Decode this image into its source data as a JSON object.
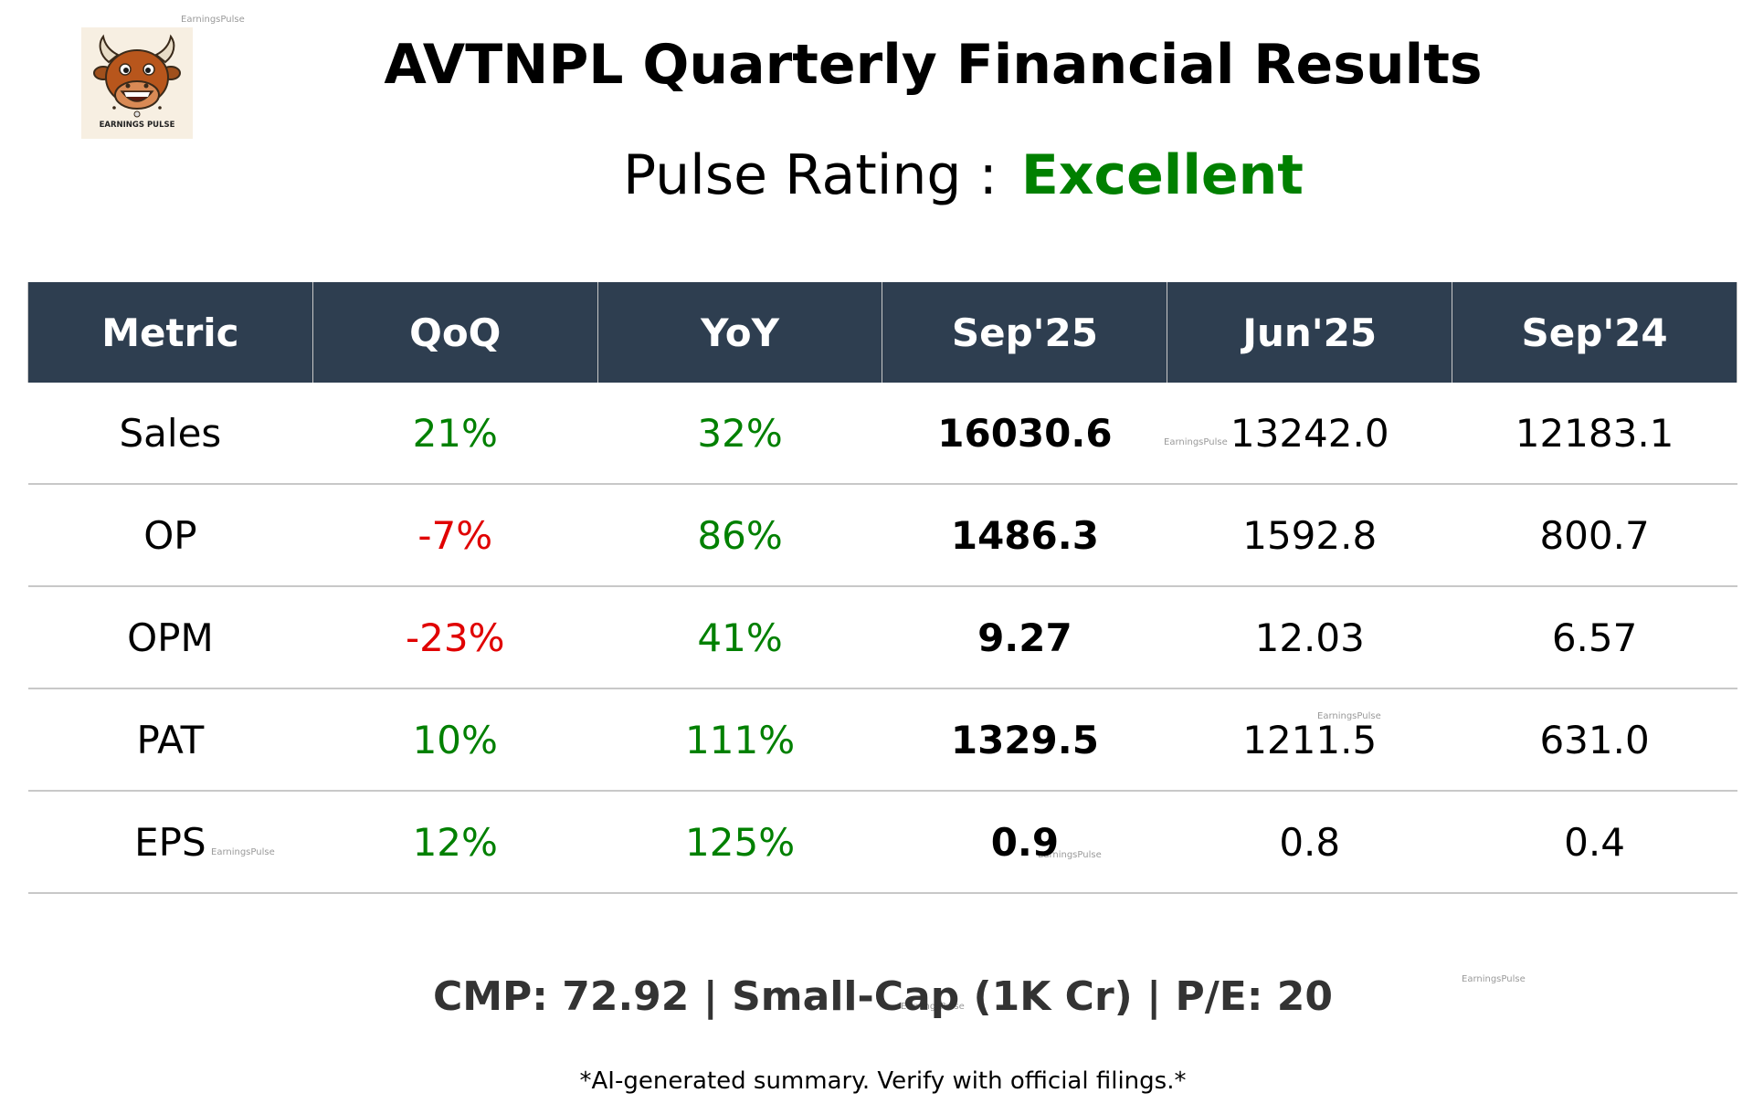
{
  "brand": {
    "logo_text": "EARNINGS PULSE",
    "watermark": "EarningsPulse"
  },
  "header": {
    "title": "AVTNPL Quarterly Financial Results",
    "rating_label": "Pulse Rating :",
    "rating_value": "Excellent",
    "rating_color": "#008000"
  },
  "colors": {
    "positive": "#008000",
    "negative": "#e00000",
    "header_bg": "#2e3e50"
  },
  "table": {
    "columns": [
      "Metric",
      "QoQ",
      "YoY",
      "Sep'25",
      "Jun'25",
      "Sep'24"
    ],
    "rows": [
      {
        "metric": "Sales",
        "qoq": "21%",
        "qoq_trend": "positive",
        "yoy": "32%",
        "yoy_trend": "positive",
        "sep25": "16030.6",
        "jun25": "13242.0",
        "sep24": "12183.1"
      },
      {
        "metric": "OP",
        "qoq": "-7%",
        "qoq_trend": "negative",
        "yoy": "86%",
        "yoy_trend": "positive",
        "sep25": "1486.3",
        "jun25": "1592.8",
        "sep24": "800.7"
      },
      {
        "metric": "OPM",
        "qoq": "-23%",
        "qoq_trend": "negative",
        "yoy": "41%",
        "yoy_trend": "positive",
        "sep25": "9.27",
        "jun25": "12.03",
        "sep24": "6.57"
      },
      {
        "metric": "PAT",
        "qoq": "10%",
        "qoq_trend": "positive",
        "yoy": "111%",
        "yoy_trend": "positive",
        "sep25": "1329.5",
        "jun25": "1211.5",
        "sep24": "631.0"
      },
      {
        "metric": "EPS",
        "qoq": "12%",
        "qoq_trend": "positive",
        "yoy": "125%",
        "yoy_trend": "positive",
        "sep25": "0.9",
        "jun25": "0.8",
        "sep24": "0.4"
      }
    ]
  },
  "footer": {
    "summary": "CMP: 72.92 | Small-Cap (1K Cr) | P/E: 20",
    "disclaimer": "*AI-generated summary. Verify with official filings.*"
  }
}
